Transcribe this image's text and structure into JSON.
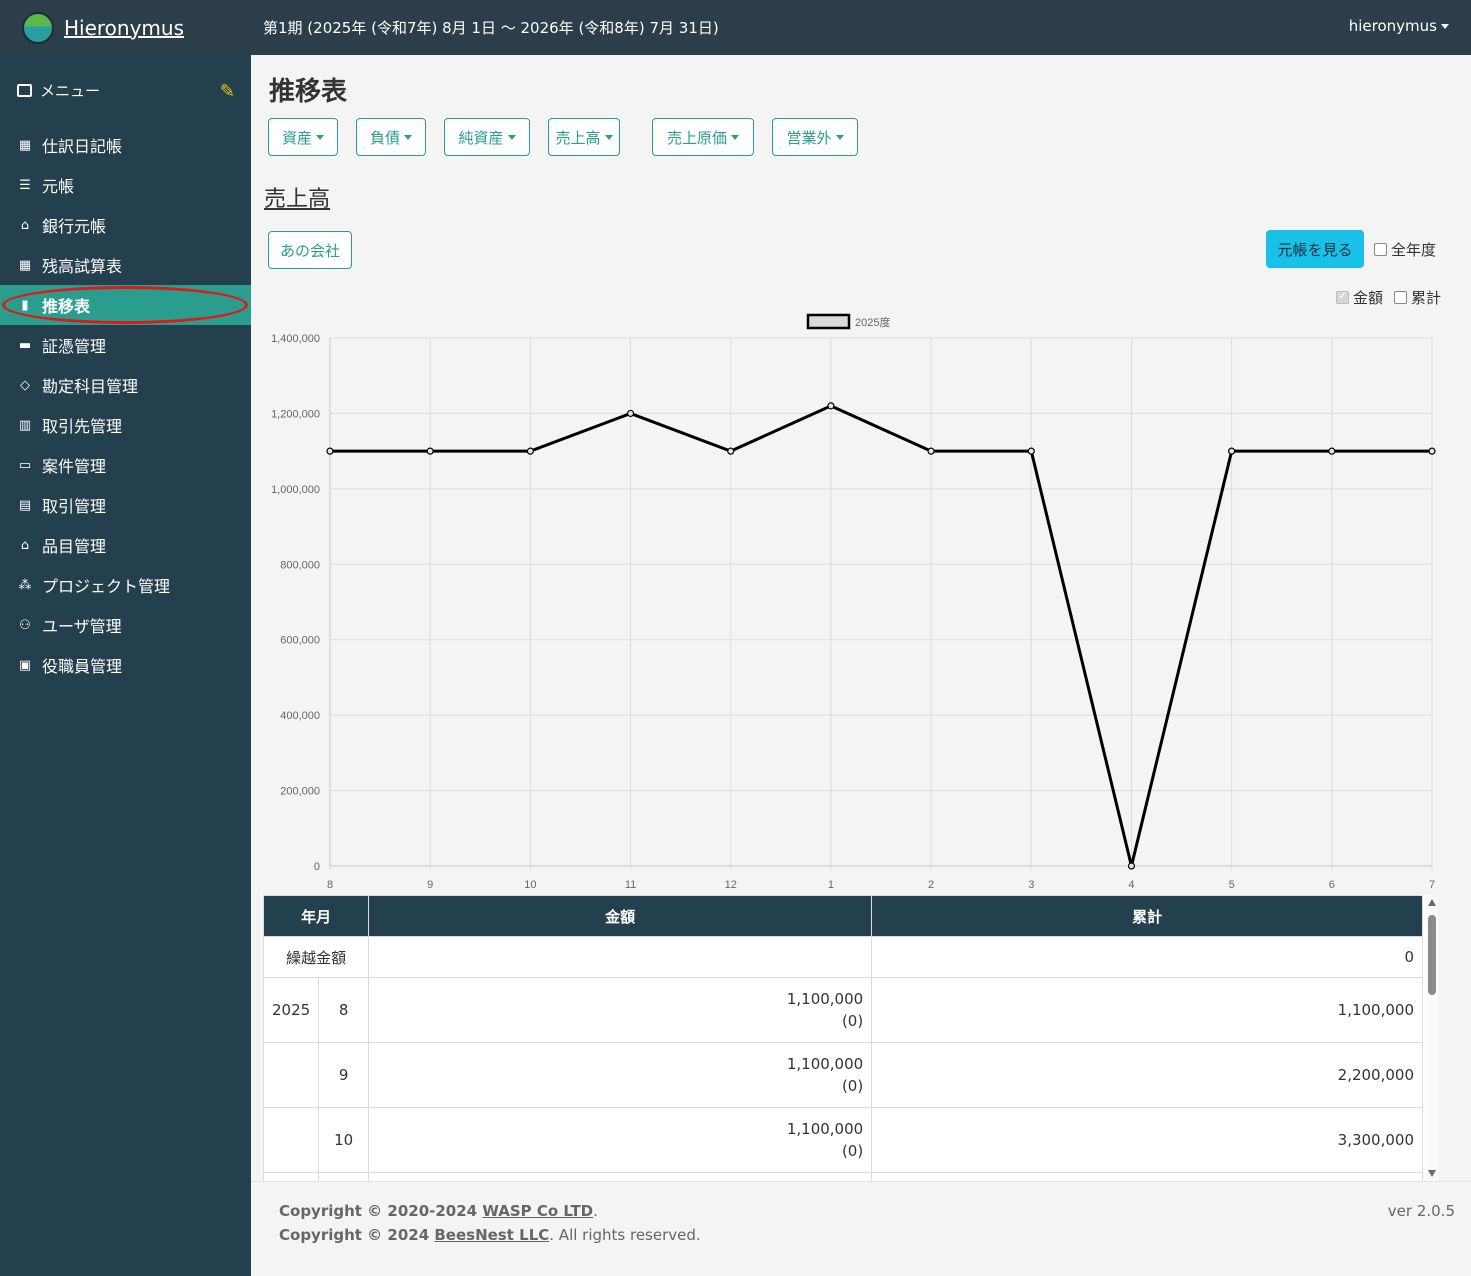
{
  "app": {
    "name": "Hieronymus",
    "period": "第1期 (2025年 (令和7年) 8月 1日 〜 2026年 (令和8年) 7月 31日)",
    "user": "hieronymus"
  },
  "sidebar": {
    "menu_label": "メニュー",
    "items": [
      {
        "label": "仕訳日記帳",
        "icon": "calendar-icon"
      },
      {
        "label": "元帳",
        "icon": "ledger-icon"
      },
      {
        "label": "銀行元帳",
        "icon": "bank-icon"
      },
      {
        "label": "残高試算表",
        "icon": "table-icon"
      },
      {
        "label": "推移表",
        "icon": "bar-chart-icon",
        "active": true
      },
      {
        "label": "証憑管理",
        "icon": "archive-icon"
      },
      {
        "label": "勘定科目管理",
        "icon": "tag-icon"
      },
      {
        "label": "取引先管理",
        "icon": "building-icon"
      },
      {
        "label": "案件管理",
        "icon": "folder-icon"
      },
      {
        "label": "取引管理",
        "icon": "document-icon"
      },
      {
        "label": "品目管理",
        "icon": "shop-icon"
      },
      {
        "label": "プロジェクト管理",
        "icon": "diagram-icon"
      },
      {
        "label": "ユーザ管理",
        "icon": "users-icon"
      },
      {
        "label": "役職員管理",
        "icon": "person-badge-icon"
      }
    ]
  },
  "main": {
    "title": "推移表",
    "categories": [
      "資産",
      "負債",
      "純資産",
      "売上高",
      "売上原価",
      "営業外"
    ],
    "subtitle": "売上高",
    "company_button": "あの会社",
    "ledger_button": "元帳を見る",
    "full_year_label": "全年度",
    "amount_label": "金額",
    "cumulative_label": "累計"
  },
  "chart_data": {
    "type": "line",
    "categories": [
      "8",
      "9",
      "10",
      "11",
      "12",
      "1",
      "2",
      "3",
      "4",
      "5",
      "6",
      "7"
    ],
    "series": [
      {
        "name": "2025度",
        "values": [
          1100000,
          1100000,
          1100000,
          1200000,
          1100000,
          1220000,
          1100000,
          1100000,
          0,
          1100000,
          1100000,
          1100000
        ]
      }
    ],
    "ylim": [
      0,
      1400000
    ],
    "yticks": [
      "1,400,000",
      "1,200,000",
      "1,000,000",
      "800,000",
      "600,000",
      "400,000",
      "200,000",
      "0"
    ],
    "grid": true,
    "legend": "top-center",
    "line_color": "#000000"
  },
  "table": {
    "headers": [
      "年月",
      "金額",
      "累計"
    ],
    "carry_label": "繰越金額",
    "carry_value": "0",
    "rows": [
      {
        "year": "2025",
        "month": "8",
        "amount": "1,100,000",
        "amount_sub": "(0)",
        "cumulative": "1,100,000"
      },
      {
        "year": "",
        "month": "9",
        "amount": "1,100,000",
        "amount_sub": "(0)",
        "cumulative": "2,200,000"
      },
      {
        "year": "",
        "month": "10",
        "amount": "1,100,000",
        "amount_sub": "(0)",
        "cumulative": "3,300,000"
      }
    ]
  },
  "footer": {
    "line1_prefix": "Copyright © 2020-2024 ",
    "line1_company": "WASP Co LTD",
    "line2_prefix": "Copyright © 2024 ",
    "line2_company": "BeesNest LLC",
    "line2_suffix": ". All rights reserved.",
    "version": "ver 2.0.5"
  },
  "colors": {
    "accent": "#2a9d8f",
    "sidebar": "#243f4e",
    "ledger_button": "#17c1e8",
    "highlight_ring": "#e01818"
  }
}
